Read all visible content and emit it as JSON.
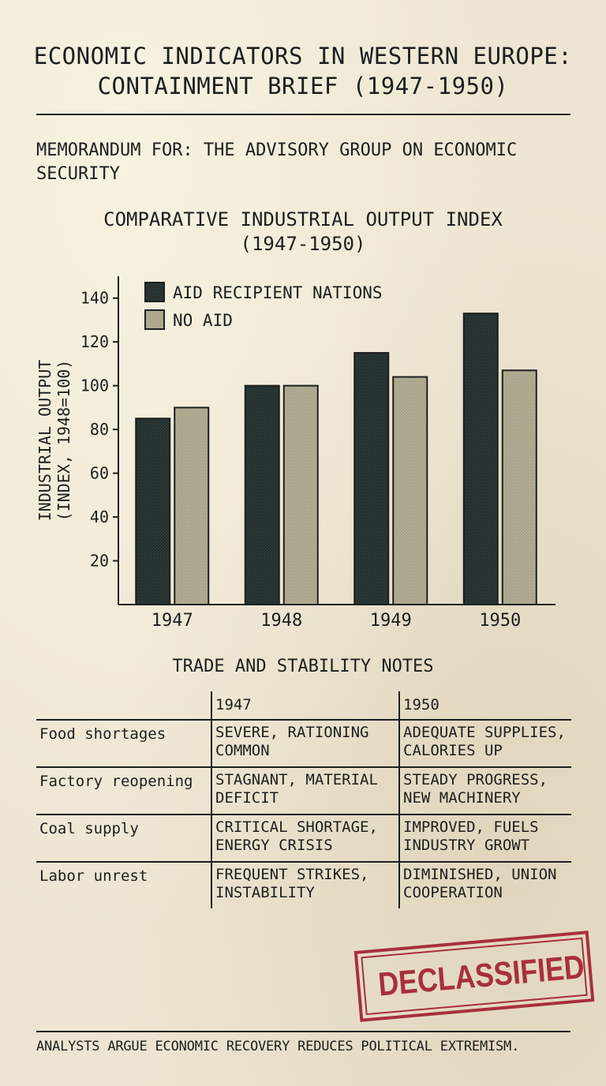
{
  "title_lines": [
    "ECONOMIC INDICATORS IN WESTERN EUROPE:",
    "CONTAINMENT BRIEF (1947-1950)"
  ],
  "memo": "MEMORANDUM FOR: THE ADVISORY GROUP ON ECONOMIC SECURITY",
  "chart_data": {
    "type": "bar",
    "title_lines": [
      "COMPARATIVE INDUSTRIAL OUTPUT INDEX",
      "(1947-1950)"
    ],
    "ylabel_lines": [
      "INDUSTRIAL OUTPUT",
      "(INDEX, 1948=100)"
    ],
    "xlabel": "",
    "categories": [
      "1947",
      "1948",
      "1949",
      "1950"
    ],
    "series": [
      {
        "name": "AID RECIPIENT NATIONS",
        "values": [
          85,
          100,
          115,
          133
        ],
        "color": "#2c3a38"
      },
      {
        "name": "NO AID",
        "values": [
          90,
          100,
          104,
          107
        ],
        "color": "#b3ae94"
      }
    ],
    "ylim": [
      0,
      150
    ],
    "yticks": [
      20,
      40,
      60,
      80,
      100,
      120,
      140
    ],
    "legend": "top-left",
    "grid": false
  },
  "table": {
    "title": "TRADE AND STABILITY NOTES",
    "columns": [
      "",
      "1947",
      "1950"
    ],
    "rows": [
      {
        "label": "Food shortages",
        "y1947": "SEVERE, RATIONING COMMON",
        "y1950": "ADEQUATE SUPPLIES, CALORIES UP"
      },
      {
        "label": "Factory reopening",
        "y1947": "STAGNANT, MATERIAL DEFICIT",
        "y1950": "STEADY PROGRESS, NEW MACHINERY"
      },
      {
        "label": "Coal supply",
        "y1947": "CRITICAL SHORTAGE, ENERGY CRISIS",
        "y1950": "IMPROVED, FUELS INDUSTRY GROWT"
      },
      {
        "label": "Labor unrest",
        "y1947": "FREQUENT STRIKES, INSTABILITY",
        "y1950": "DIMINISHED, UNION COOPERATION"
      }
    ]
  },
  "stamp": "DECLASSIFIED",
  "stamp_color": "#a8303a",
  "footer": "ANALYSTS ARGUE ECONOMIC RECOVERY REDUCES POLITICAL EXTREMISM."
}
